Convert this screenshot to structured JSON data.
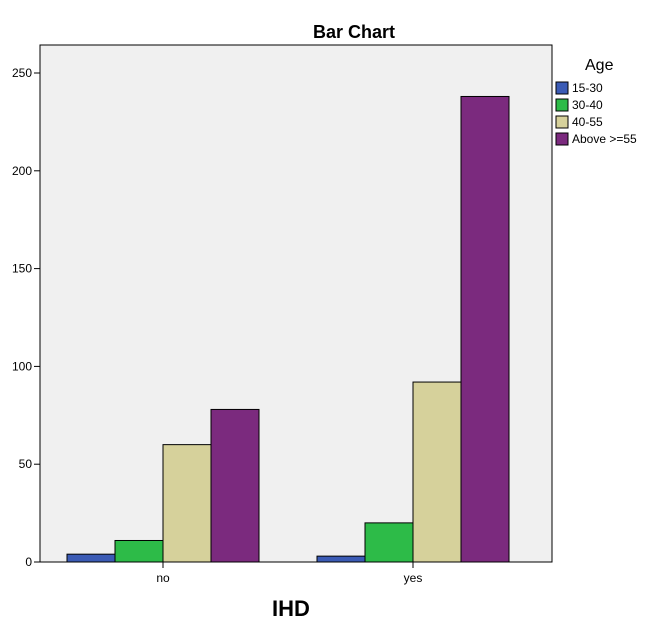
{
  "chart_data": {
    "type": "bar",
    "title": "Bar Chart",
    "xlabel": "IHD",
    "ylabel": "",
    "categories": [
      "no",
      "yes"
    ],
    "ylim": [
      0,
      260
    ],
    "yticks": [
      0,
      50,
      100,
      150,
      200,
      250
    ],
    "legend": {
      "title": "Age",
      "placement": "right"
    },
    "grid": false,
    "series": [
      {
        "name": "15-30",
        "color": "#3b5bb5",
        "values": [
          4,
          3
        ]
      },
      {
        "name": "30-40",
        "color": "#2dbb48",
        "values": [
          11,
          20
        ]
      },
      {
        "name": "40-55",
        "color": "#d6d19b",
        "values": [
          60,
          92
        ]
      },
      {
        "name": "Above >=55",
        "color": "#7b2a7e",
        "values": [
          78,
          238
        ]
      }
    ]
  }
}
